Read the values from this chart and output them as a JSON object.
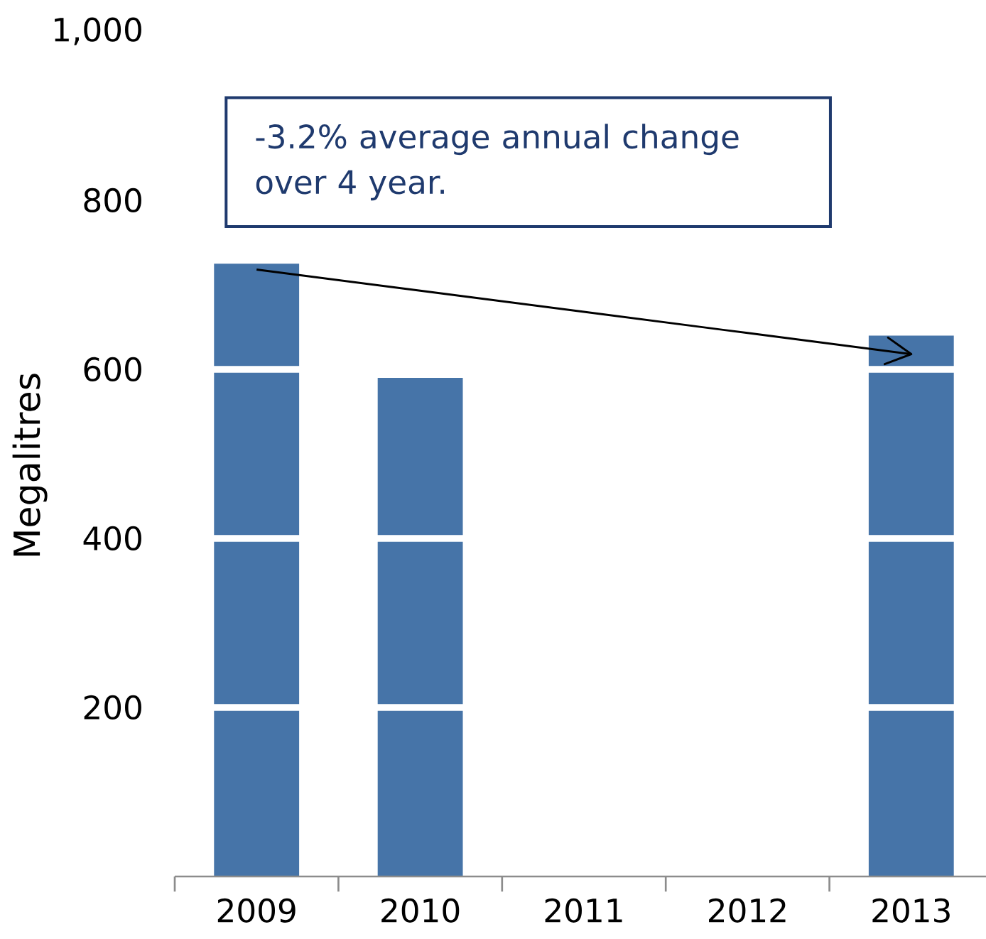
{
  "chart_data": {
    "type": "bar",
    "ylabel": "Megalitres",
    "categories": [
      "2009",
      "2010",
      "2011",
      "2012",
      "2013"
    ],
    "series": [
      {
        "color": "#4674a8",
        "values": [
          725,
          590,
          null,
          null,
          640
        ]
      },
      {
        "type": "line",
        "color": "#000000",
        "values": [
          718,
          693,
          668,
          643,
          618
        ]
      }
    ],
    "ylim": [
      0,
      1000
    ],
    "yticks": [
      200,
      400,
      600,
      800,
      {
        "value": 1000,
        "label": "1,000"
      }
    ],
    "grid": "y",
    "annotations": [
      "-3.2% average annual change over 4 year."
    ]
  }
}
